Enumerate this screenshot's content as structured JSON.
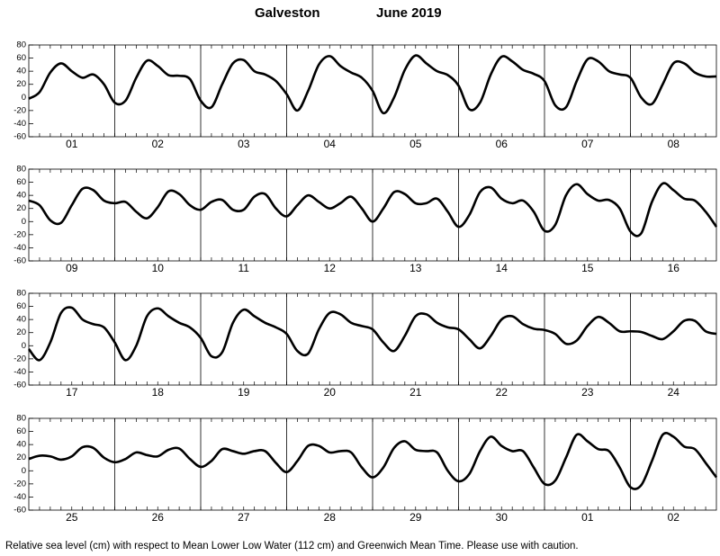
{
  "title": "Galveston",
  "date": "June 2019",
  "note": "Relative sea level (cm) with respect to Mean Lower Low Water (112 cm) and Greenwich Mean Time. Please use with caution.",
  "chart_data": [
    {
      "type": "line",
      "color": "#000000",
      "xlim": [
        0,
        192
      ],
      "ylim": [
        -60,
        80
      ],
      "yticks": [
        -60,
        -40,
        -20,
        0,
        20,
        40,
        60,
        80
      ],
      "categories": [
        "01",
        "02",
        "03",
        "04",
        "05",
        "06",
        "07",
        "08"
      ],
      "x": [
        0,
        3,
        6,
        9,
        12,
        15,
        18,
        21,
        24,
        27,
        30,
        33,
        36,
        39,
        42,
        45,
        48,
        51,
        54,
        57,
        60,
        63,
        66,
        69,
        72,
        75,
        78,
        81,
        84,
        87,
        90,
        93,
        96,
        99,
        102,
        105,
        108,
        111,
        114,
        117,
        120,
        123,
        126,
        129,
        132,
        135,
        138,
        141,
        144,
        147,
        150,
        153,
        156,
        159,
        162,
        165,
        168,
        171,
        174,
        177,
        180,
        183,
        186,
        189,
        192
      ],
      "values": [
        -2,
        8,
        38,
        52,
        40,
        30,
        35,
        20,
        -8,
        -5,
        30,
        56,
        48,
        34,
        33,
        28,
        -5,
        -15,
        20,
        52,
        57,
        40,
        35,
        25,
        5,
        -20,
        10,
        50,
        63,
        48,
        38,
        30,
        10,
        -24,
        0,
        42,
        64,
        52,
        40,
        34,
        18,
        -18,
        -8,
        35,
        62,
        55,
        42,
        36,
        25,
        -12,
        -15,
        25,
        58,
        55,
        40,
        35,
        30,
        0,
        -10,
        20,
        52,
        52,
        38,
        32,
        32
      ]
    },
    {
      "type": "line",
      "color": "#000000",
      "xlim": [
        0,
        192
      ],
      "ylim": [
        -60,
        80
      ],
      "yticks": [
        -60,
        -40,
        -20,
        0,
        20,
        40,
        60,
        80
      ],
      "categories": [
        "09",
        "10",
        "11",
        "12",
        "13",
        "14",
        "15",
        "16"
      ],
      "x": [
        0,
        3,
        6,
        9,
        12,
        15,
        18,
        21,
        24,
        27,
        30,
        33,
        36,
        39,
        42,
        45,
        48,
        51,
        54,
        57,
        60,
        63,
        66,
        69,
        72,
        75,
        78,
        81,
        84,
        87,
        90,
        93,
        96,
        99,
        102,
        105,
        108,
        111,
        114,
        117,
        120,
        123,
        126,
        129,
        132,
        135,
        138,
        141,
        144,
        147,
        150,
        153,
        156,
        159,
        162,
        165,
        168,
        171,
        174,
        177,
        180,
        183,
        186,
        189,
        192
      ],
      "values": [
        32,
        25,
        2,
        -2,
        25,
        50,
        48,
        32,
        28,
        30,
        15,
        5,
        22,
        46,
        42,
        25,
        18,
        30,
        33,
        18,
        18,
        38,
        42,
        20,
        8,
        25,
        40,
        30,
        20,
        28,
        38,
        20,
        0,
        20,
        45,
        42,
        28,
        28,
        35,
        15,
        -8,
        10,
        45,
        52,
        35,
        28,
        32,
        15,
        -14,
        -5,
        40,
        57,
        42,
        32,
        33,
        20,
        -15,
        -18,
        30,
        58,
        48,
        35,
        32,
        15,
        -8
      ]
    },
    {
      "type": "line",
      "color": "#000000",
      "xlim": [
        0,
        192
      ],
      "ylim": [
        -60,
        80
      ],
      "yticks": [
        -60,
        -40,
        -20,
        0,
        20,
        40,
        60,
        80
      ],
      "categories": [
        "17",
        "18",
        "19",
        "20",
        "21",
        "22",
        "23",
        "24"
      ],
      "x": [
        0,
        3,
        6,
        9,
        12,
        15,
        18,
        21,
        24,
        27,
        30,
        33,
        36,
        39,
        42,
        45,
        48,
        51,
        54,
        57,
        60,
        63,
        66,
        69,
        72,
        75,
        78,
        81,
        84,
        87,
        90,
        93,
        96,
        99,
        102,
        105,
        108,
        111,
        114,
        117,
        120,
        123,
        126,
        129,
        132,
        135,
        138,
        141,
        144,
        147,
        150,
        153,
        156,
        159,
        162,
        165,
        168,
        171,
        174,
        177,
        180,
        183,
        186,
        189,
        192
      ],
      "values": [
        -5,
        -22,
        5,
        50,
        58,
        40,
        33,
        28,
        5,
        -22,
        0,
        45,
        57,
        45,
        35,
        28,
        12,
        -16,
        -10,
        35,
        55,
        45,
        35,
        28,
        18,
        -8,
        -12,
        25,
        50,
        48,
        35,
        30,
        25,
        5,
        -8,
        15,
        45,
        48,
        35,
        28,
        25,
        10,
        -4,
        15,
        40,
        45,
        33,
        26,
        24,
        18,
        3,
        8,
        30,
        44,
        35,
        22,
        22,
        21,
        15,
        10,
        22,
        38,
        38,
        22,
        18
      ]
    },
    {
      "type": "line",
      "color": "#000000",
      "xlim": [
        0,
        192
      ],
      "ylim": [
        -60,
        80
      ],
      "yticks": [
        -60,
        -40,
        -20,
        0,
        20,
        40,
        60,
        80
      ],
      "categories": [
        "25",
        "26",
        "27",
        "28",
        "29",
        "30",
        "01",
        "02"
      ],
      "x": [
        0,
        3,
        6,
        9,
        12,
        15,
        18,
        21,
        24,
        27,
        30,
        33,
        36,
        39,
        42,
        45,
        48,
        51,
        54,
        57,
        60,
        63,
        66,
        69,
        72,
        75,
        78,
        81,
        84,
        87,
        90,
        93,
        96,
        99,
        102,
        105,
        108,
        111,
        114,
        117,
        120,
        123,
        126,
        129,
        132,
        135,
        138,
        141,
        144,
        147,
        150,
        153,
        156,
        159,
        162,
        165,
        168,
        171,
        174,
        177,
        180,
        183,
        186,
        189,
        192
      ],
      "values": [
        18,
        23,
        22,
        17,
        22,
        36,
        35,
        20,
        13,
        18,
        28,
        24,
        22,
        32,
        34,
        18,
        6,
        15,
        33,
        30,
        26,
        30,
        30,
        12,
        -2,
        15,
        38,
        38,
        28,
        30,
        28,
        5,
        -10,
        5,
        35,
        45,
        32,
        30,
        28,
        0,
        -16,
        -5,
        30,
        52,
        38,
        30,
        30,
        5,
        -20,
        -15,
        20,
        55,
        45,
        33,
        30,
        5,
        -25,
        -22,
        15,
        55,
        52,
        37,
        33,
        12,
        -10
      ]
    }
  ]
}
